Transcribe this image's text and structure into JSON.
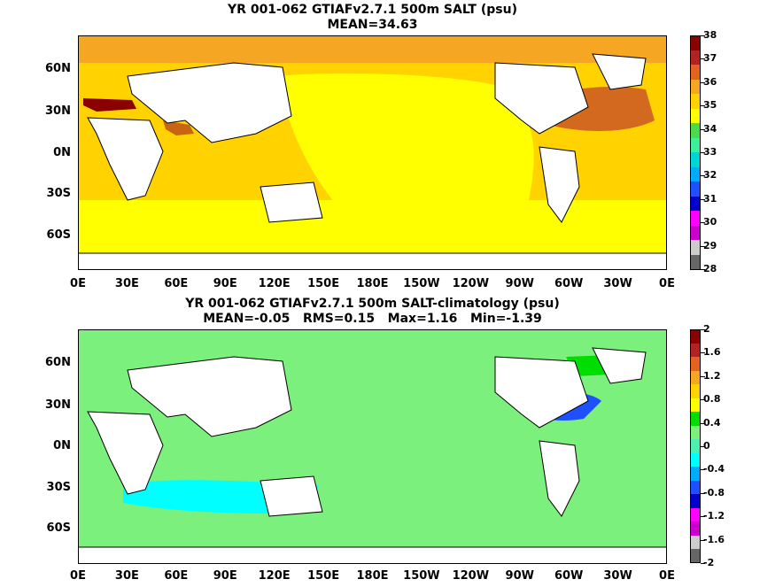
{
  "panels": [
    {
      "id": "top",
      "title_line1": "YR 001-062 GTIAFv2.7.1 500m SALT (psu)",
      "title_line2": "MEAN=34.63",
      "colorbar_labels": [
        "38",
        "37",
        "36",
        "35",
        "34",
        "33",
        "32",
        "31",
        "30",
        "29",
        "28"
      ],
      "colorbar_colors": [
        "#8b0000",
        "#b22222",
        "#e2621e",
        "#f5a623",
        "#ffd200",
        "#ffff00",
        "#4cd94c",
        "#3cf09a",
        "#00d6d6",
        "#00aaff",
        "#1e50ff",
        "#0000cc",
        "#ff00ff",
        "#cc00cc",
        "#cccccc",
        "#666666"
      ],
      "colors": {
        "ocean_base": "#ffd200",
        "pacific": "#ffff00",
        "southern": "#ffff00",
        "atlantic_north": "#d2691e",
        "mediterranean": "#8b0000",
        "arabian": "#c86414",
        "arctic": "#f5a623",
        "land": "#ffffff"
      }
    },
    {
      "id": "bottom",
      "title_line1": "YR 001-062 GTIAFv2.7.1 500m SALT-climatology (psu)",
      "title_line2": "MEAN=-0.05   RMS=0.15   Max=1.16   Min=-1.39",
      "colorbar_labels": [
        "2",
        "1.6",
        "1.2",
        "0.8",
        "0.4",
        "0",
        "-0.4",
        "-0.8",
        "-1.2",
        "-1.6",
        "-2"
      ],
      "colorbar_colors": [
        "#8b0000",
        "#b22222",
        "#e2621e",
        "#f5a623",
        "#ffd200",
        "#ffff00",
        "#00dd00",
        "#7cf07c",
        "#4cf0b0",
        "#00ffff",
        "#00aaff",
        "#1e50ff",
        "#0000cc",
        "#ff00ff",
        "#cc00cc",
        "#cccccc",
        "#666666"
      ],
      "colors": {
        "ocean_base": "#7cf07c",
        "gulf_stream": "#1e50ff",
        "south_indian": "#00ffff",
        "labrador": "#00dd00",
        "land": "#ffffff"
      }
    }
  ],
  "y_axis_labels": [
    "60N",
    "30N",
    "0N",
    "30S",
    "60S"
  ],
  "x_axis_labels": [
    "0E",
    "30E",
    "60E",
    "90E",
    "120E",
    "150E",
    "180E",
    "150W",
    "120W",
    "90W",
    "60W",
    "30W",
    "0E"
  ]
}
